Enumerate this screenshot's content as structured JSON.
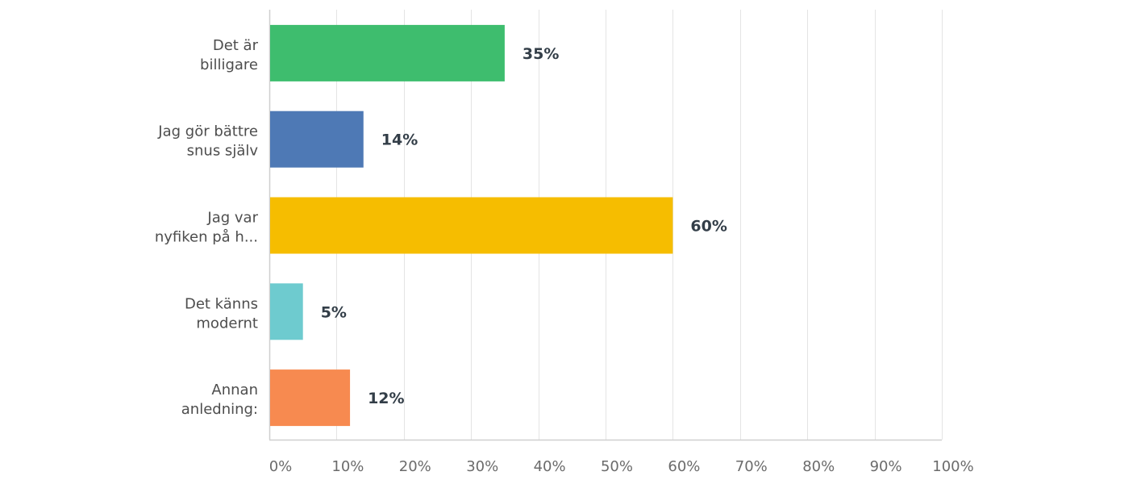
{
  "chart_data": {
    "type": "bar",
    "orientation": "horizontal",
    "categories": [
      [
        "Det är",
        "billigare"
      ],
      [
        "Jag gör bättre",
        "snus själv"
      ],
      [
        "Jag var",
        "nyfiken på h..."
      ],
      [
        "Det känns",
        "modernt"
      ],
      [
        "Annan",
        "anledning:"
      ]
    ],
    "values": [
      35,
      14,
      60,
      5,
      12
    ],
    "value_labels": [
      "35%",
      "14%",
      "60%",
      "5%",
      "12%"
    ],
    "colors": [
      "#3ebd6e",
      "#4e79b5",
      "#f6bd00",
      "#6ecbcf",
      "#f78a50"
    ],
    "x_ticks": [
      "0%",
      "10%",
      "20%",
      "30%",
      "40%",
      "50%",
      "60%",
      "70%",
      "80%",
      "90%",
      "100%"
    ],
    "xlim": [
      0,
      100
    ],
    "grid": true,
    "title": "",
    "xlabel": "",
    "ylabel": ""
  }
}
